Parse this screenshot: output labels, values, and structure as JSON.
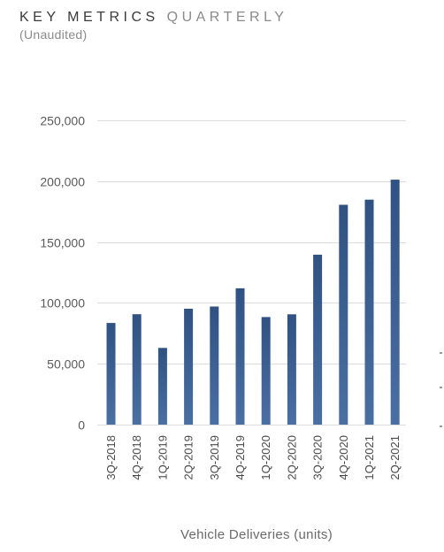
{
  "header": {
    "title_main": "KEY METRICS",
    "title_secondary": "QUARTERLY",
    "subtitle": "(Unaudited)"
  },
  "colors": {
    "bar_top": "#2f5282",
    "bar_bottom": "#4a6fa3",
    "grid": "#dcdcdc"
  },
  "chart_data": {
    "type": "bar",
    "title": "",
    "xlabel": "Vehicle Deliveries (units)",
    "ylabel": "",
    "ylim": [
      0,
      250000
    ],
    "yticks": [
      0,
      50000,
      100000,
      150000,
      200000,
      250000
    ],
    "ytick_labels": [
      "0",
      "50,000",
      "100,000",
      "150,000",
      "200,000",
      "250,000"
    ],
    "grid": true,
    "categories": [
      "3Q-2018",
      "4Q-2018",
      "1Q-2019",
      "2Q-2019",
      "3Q-2019",
      "4Q-2019",
      "1Q-2020",
      "2Q-2020",
      "3Q-2020",
      "4Q-2020",
      "1Q-2021",
      "2Q-2021"
    ],
    "values": [
      83500,
      90700,
      63000,
      95200,
      97000,
      112000,
      88400,
      90650,
      139600,
      180600,
      184800,
      201250
    ]
  }
}
